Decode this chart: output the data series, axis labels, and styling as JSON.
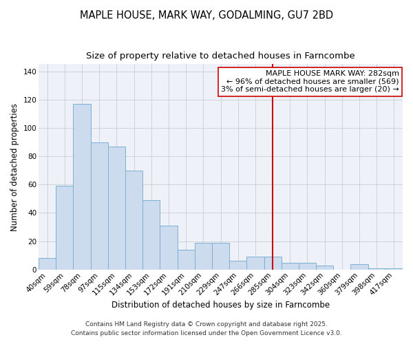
{
  "title": "MAPLE HOUSE, MARK WAY, GODALMING, GU7 2BD",
  "subtitle": "Size of property relative to detached houses in Farncombe",
  "xlabel": "Distribution of detached houses by size in Farncombe",
  "ylabel": "Number of detached properties",
  "bar_labels": [
    "40sqm",
    "59sqm",
    "78sqm",
    "97sqm",
    "115sqm",
    "134sqm",
    "153sqm",
    "172sqm",
    "191sqm",
    "210sqm",
    "229sqm",
    "247sqm",
    "266sqm",
    "285sqm",
    "304sqm",
    "323sqm",
    "342sqm",
    "360sqm",
    "379sqm",
    "398sqm",
    "417sqm"
  ],
  "bar_values": [
    8,
    59,
    117,
    90,
    87,
    70,
    49,
    31,
    14,
    19,
    19,
    6,
    9,
    9,
    5,
    5,
    3,
    0,
    4,
    1,
    1
  ],
  "bar_color": "#ccdcee",
  "bar_edge_color": "#7bafd4",
  "vline_index": 13,
  "vline_color": "#cc0000",
  "ylim": [
    0,
    145
  ],
  "yticks": [
    0,
    20,
    40,
    60,
    80,
    100,
    120,
    140
  ],
  "annotation_title": "MAPLE HOUSE MARK WAY: 282sqm",
  "annotation_line1": "← 96% of detached houses are smaller (569)",
  "annotation_line2": "3% of semi-detached houses are larger (20) →",
  "footer1": "Contains HM Land Registry data © Crown copyright and database right 2025.",
  "footer2": "Contains public sector information licensed under the Open Government Licence v3.0.",
  "bg_color": "#eef2f8",
  "grid_color": "#c8ccd4",
  "title_fontsize": 10.5,
  "subtitle_fontsize": 9.5,
  "axis_label_fontsize": 8.5,
  "tick_fontsize": 7.5,
  "annotation_fontsize": 8,
  "footer_fontsize": 6.5
}
